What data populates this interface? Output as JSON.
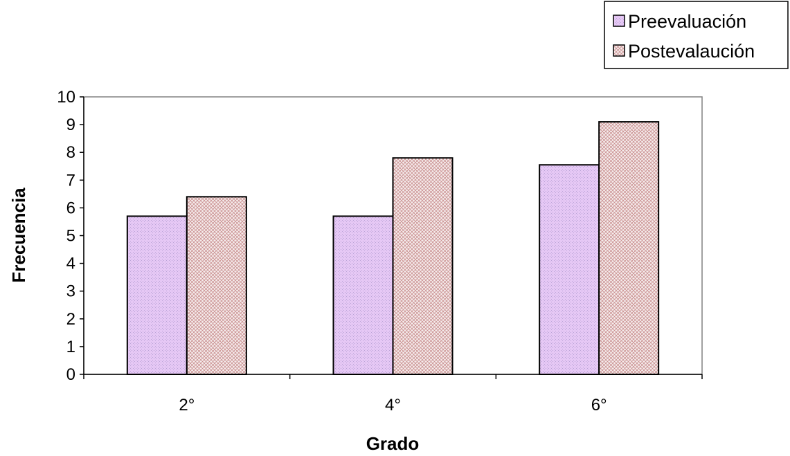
{
  "chart_data": {
    "type": "bar",
    "categories": [
      "2°",
      "4°",
      "6°"
    ],
    "series": [
      {
        "name": "Preevaluación",
        "values": [
          5.7,
          5.7,
          7.55
        ],
        "color": "#e6c8f5",
        "pattern_color": "#b9a3d6"
      },
      {
        "name": "Postevalaución",
        "values": [
          6.4,
          7.8,
          9.1
        ],
        "color": "#f4ecec",
        "pattern_color": "#c98e8e"
      }
    ],
    "xlabel": "Grado",
    "ylabel": "Frecuencia",
    "ylim": [
      0,
      10
    ],
    "yticks": [
      "0",
      "1",
      "2",
      "3",
      "4",
      "5",
      "6",
      "7",
      "8",
      "9",
      "10"
    ],
    "grid": false,
    "legend_position": "top-right"
  }
}
